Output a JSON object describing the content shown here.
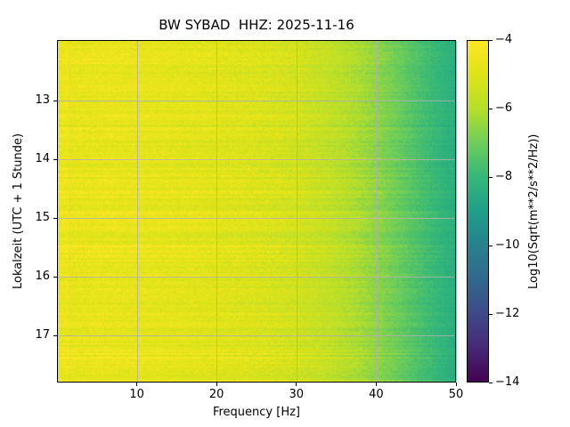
{
  "figure": {
    "background": "#ffffff"
  },
  "chart_data": {
    "type": "heatmap",
    "title": "BW SYBAD  HHZ: 2025-11-16",
    "xlabel": "Frequency [Hz]",
    "ylabel": "Lokalzeit (UTC + 1 Stunde)",
    "colorbar_label": "Log10(Sqrt(m**2/s**2/Hz))",
    "x_range": [
      0,
      50
    ],
    "x_ticks": [
      10,
      20,
      30,
      40,
      50
    ],
    "y_range": [
      11.97,
      17.8
    ],
    "y_ticks": [
      13,
      14,
      15,
      16,
      17
    ],
    "value_range": [
      -14,
      -4
    ],
    "colorbar_ticks": [
      -4,
      -6,
      -8,
      -10,
      -12,
      -14
    ],
    "grid": true,
    "grid_color": "#b0b0b0",
    "colormap": "viridis",
    "colormap_stops": [
      [
        0.0,
        68,
        1,
        84
      ],
      [
        0.1,
        72,
        40,
        120
      ],
      [
        0.2,
        62,
        74,
        137
      ],
      [
        0.3,
        49,
        104,
        142
      ],
      [
        0.4,
        38,
        130,
        142
      ],
      [
        0.5,
        31,
        158,
        137
      ],
      [
        0.6,
        53,
        183,
        121
      ],
      [
        0.7,
        109,
        205,
        89
      ],
      [
        0.8,
        181,
        222,
        43
      ],
      [
        0.9,
        223,
        227,
        24
      ],
      [
        1.0,
        253,
        231,
        37
      ]
    ],
    "spectrum_profile": {
      "frequencies": [
        0,
        2,
        5,
        10,
        15,
        20,
        25,
        30,
        34,
        38,
        42,
        46,
        50
      ],
      "values": [
        -4.9,
        -4.75,
        -4.7,
        -4.75,
        -4.85,
        -4.95,
        -5.1,
        -5.35,
        -5.7,
        -6.2,
        -6.9,
        -7.7,
        -8.4
      ]
    }
  }
}
